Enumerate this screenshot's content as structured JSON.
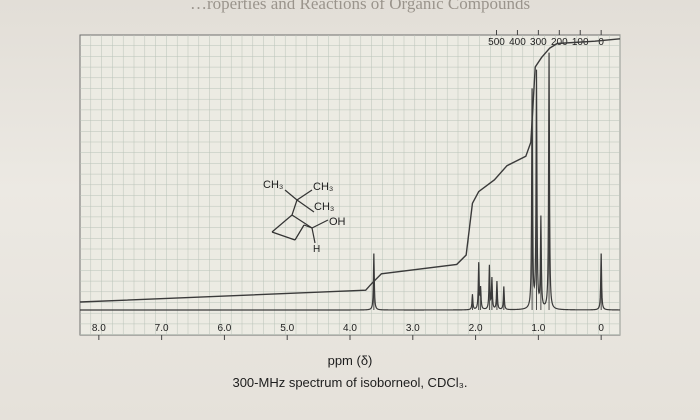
{
  "header_text": "…roperties and Reactions of Organic Compounds",
  "chart_data": {
    "type": "line",
    "title": "",
    "xlabel": "ppm (δ)",
    "caption": "300-MHz spectrum of isoborneol, CDCl₃.",
    "x_axis": {
      "reversed": true,
      "xlim": [
        8.3,
        -0.3
      ],
      "ticks": [
        "8.0",
        "7.0",
        "6.0",
        "5.0",
        "4.0",
        "3.0",
        "2.0",
        "1.0",
        "0"
      ]
    },
    "top_axis": {
      "unit": "Hz",
      "ticks": [
        "500",
        "400",
        "300",
        "200",
        "100",
        "0"
      ]
    },
    "grid": true,
    "structure_labels": [
      "CH₃",
      "CH₃",
      "CH₃",
      "OH",
      "H"
    ],
    "series": [
      {
        "kind": "spectrum",
        "peaks": [
          {
            "ppm": 3.62,
            "height": 0.22
          },
          {
            "ppm": 2.05,
            "height": 0.06
          },
          {
            "ppm": 1.95,
            "height": 0.18
          },
          {
            "ppm": 1.92,
            "height": 0.08
          },
          {
            "ppm": 1.78,
            "height": 0.17
          },
          {
            "ppm": 1.74,
            "height": 0.12
          },
          {
            "ppm": 1.66,
            "height": 0.11
          },
          {
            "ppm": 1.55,
            "height": 0.09
          },
          {
            "ppm": 1.1,
            "height": 0.85
          },
          {
            "ppm": 1.03,
            "height": 0.92
          },
          {
            "ppm": 0.96,
            "height": 0.35
          },
          {
            "ppm": 0.83,
            "height": 1.0
          },
          {
            "ppm": 0.0,
            "height": 0.22
          }
        ]
      },
      {
        "kind": "integral",
        "points": [
          [
            8.3,
            0.0
          ],
          [
            3.75,
            0.05
          ],
          [
            3.65,
            0.08
          ],
          [
            3.5,
            0.12
          ],
          [
            2.3,
            0.16
          ],
          [
            2.15,
            0.2
          ],
          [
            2.05,
            0.42
          ],
          [
            1.95,
            0.47
          ],
          [
            1.7,
            0.52
          ],
          [
            1.5,
            0.58
          ],
          [
            1.2,
            0.62
          ],
          [
            1.12,
            0.68
          ],
          [
            1.05,
            1.0
          ],
          [
            0.95,
            1.04
          ],
          [
            0.82,
            1.08
          ],
          [
            0.7,
            1.1
          ],
          [
            0.1,
            1.11
          ],
          [
            -0.3,
            1.12
          ]
        ]
      }
    ]
  }
}
